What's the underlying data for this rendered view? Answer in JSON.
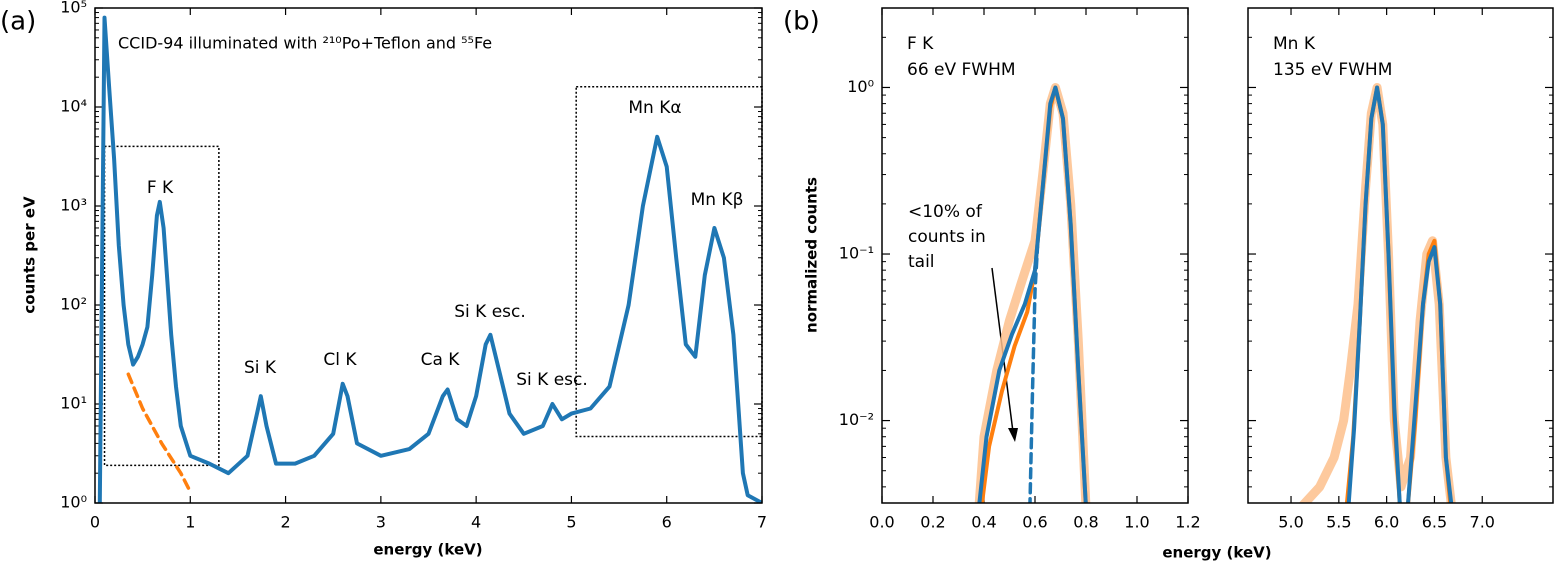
{
  "chart_data": [
    {
      "type": "line",
      "panel": "(a)",
      "ylabel": "counts per eV",
      "xlabel": "energy (keV)",
      "ylog": true,
      "xlim": [
        0,
        7
      ],
      "xticks": [
        0,
        1,
        2,
        3,
        4,
        5,
        6,
        7
      ],
      "ylim": [
        1,
        100000
      ],
      "yticks": [
        {
          "value": 1,
          "label": "10⁰"
        },
        {
          "value": 10,
          "label": "10¹"
        },
        {
          "value": 100,
          "label": "10²"
        },
        {
          "value": 1000,
          "label": "10³"
        },
        {
          "value": 10000,
          "label": "10⁴"
        },
        {
          "value": 100000,
          "label": "10⁵"
        }
      ],
      "annotations": [
        "CCID-94 illuminated with ²¹⁰Po+Teflon and ⁵⁵Fe",
        "F K",
        "Si K",
        "Cl K",
        "Ca K",
        "Si K esc.",
        "Si K esc.",
        "Mn Kα",
        "Mn Kβ"
      ],
      "regions": [
        {
          "x": [
            0.1,
            1.3
          ],
          "y": [
            2.4,
            4000
          ]
        },
        {
          "x": [
            5.05,
            7
          ],
          "y": [
            4.7,
            16000
          ]
        }
      ],
      "series": [
        {
          "color": "#1f77b4",
          "style": "thick",
          "x": [
            0.05,
            0.1,
            0.15,
            0.2,
            0.25,
            0.3,
            0.35,
            0.4,
            0.45,
            0.5,
            0.55,
            0.6,
            0.65,
            0.68,
            0.72,
            0.8,
            0.85,
            0.9,
            1.0,
            1.2,
            1.4,
            1.6,
            1.7,
            1.74,
            1.8,
            1.9,
            2.1,
            2.3,
            2.5,
            2.6,
            2.65,
            2.75,
            3.0,
            3.3,
            3.5,
            3.65,
            3.7,
            3.8,
            3.9,
            4.0,
            4.1,
            4.15,
            4.25,
            4.35,
            4.5,
            4.7,
            4.8,
            4.9,
            5.0,
            5.2,
            5.4,
            5.6,
            5.75,
            5.9,
            6.0,
            6.1,
            6.2,
            6.3,
            6.4,
            6.5,
            6.6,
            6.7,
            6.75,
            6.8,
            6.85,
            7.0
          ],
          "values": [
            1,
            80000,
            15000,
            3000,
            400,
            100,
            40,
            25,
            30,
            40,
            60,
            200,
            800,
            1100,
            600,
            50,
            15,
            6,
            3,
            2.5,
            2,
            3,
            8,
            12,
            6,
            2.5,
            2.5,
            3,
            5,
            16,
            12,
            4,
            3,
            3.5,
            5,
            12,
            14,
            7,
            6,
            12,
            40,
            50,
            20,
            8,
            5,
            6,
            10,
            7,
            8,
            9,
            15,
            100,
            1000,
            5000,
            2500,
            300,
            40,
            30,
            200,
            600,
            300,
            50,
            10,
            2,
            1.2,
            1
          ]
        },
        {
          "color": "#ff7f0e",
          "style": "dashed",
          "x": [
            0.35,
            0.5,
            0.7,
            0.9,
            1.0
          ],
          "values": [
            20,
            9,
            4,
            2,
            1.3
          ]
        }
      ]
    },
    {
      "type": "line",
      "panel": "(b)",
      "ylabel": "normalized counts",
      "xlabel": "energy (keV)",
      "ylog": true,
      "xlim": [
        0,
        1.2
      ],
      "xticks": [
        {
          "value": 0,
          "label": "0.0"
        },
        0.2,
        0.4,
        0.6,
        0.8,
        {
          "value": 1,
          "label": "1.0"
        },
        1.2
      ],
      "ylim": [
        0.0032,
        3
      ],
      "yticks": [
        {
          "value": 0.01,
          "label": "10⁻²"
        },
        {
          "value": 0.1,
          "label": "10⁻¹"
        },
        {
          "value": 1,
          "label": "10⁰"
        }
      ],
      "annotations": [
        "F K",
        "66 eV FWHM",
        "<10% of",
        "counts in",
        "tail"
      ],
      "series": [
        {
          "color": "#fdbf8c",
          "style": "band",
          "x": [
            0.38,
            0.4,
            0.45,
            0.5,
            0.55,
            0.6,
            0.63,
            0.66,
            0.68,
            0.71,
            0.74,
            0.77,
            0.8
          ],
          "values": [
            0.003,
            0.008,
            0.02,
            0.04,
            0.07,
            0.12,
            0.3,
            0.8,
            1.0,
            0.7,
            0.2,
            0.03,
            0.003
          ]
        },
        {
          "color": "#ff7f0e",
          "style": "thick",
          "x": [
            0.39,
            0.42,
            0.47,
            0.52,
            0.57,
            0.6,
            0.63,
            0.66,
            0.68,
            0.71,
            0.74,
            0.77,
            0.8
          ],
          "values": [
            0.003,
            0.007,
            0.015,
            0.028,
            0.045,
            0.08,
            0.25,
            0.75,
            1.0,
            0.65,
            0.15,
            0.02,
            0.003
          ]
        },
        {
          "color": "#1f77b4",
          "style": "thick",
          "x": [
            0.38,
            0.41,
            0.46,
            0.51,
            0.56,
            0.6,
            0.63,
            0.66,
            0.68,
            0.71,
            0.74,
            0.77,
            0.8
          ],
          "values": [
            0.003,
            0.008,
            0.02,
            0.033,
            0.05,
            0.08,
            0.25,
            0.8,
            1.0,
            0.65,
            0.15,
            0.02,
            0.003
          ]
        },
        {
          "color": "#1f77b4",
          "style": "dashed",
          "x": [
            0.58,
            0.59,
            0.6,
            0.61
          ],
          "values": [
            0.003,
            0.015,
            0.06,
            0.11
          ]
        }
      ]
    },
    {
      "type": "line",
      "ylog": true,
      "xlim": [
        4.55,
        7.74
      ],
      "xticks": [
        {
          "value": 5,
          "label": "5.0"
        },
        5.5,
        {
          "value": 6,
          "label": "6.0"
        },
        6.5,
        {
          "value": 7,
          "label": "7.0"
        }
      ],
      "ylim": [
        0.0032,
        3
      ],
      "yticks": [
        0.01,
        0.1,
        1
      ],
      "annotations": [
        "Mn K",
        "135 eV FWHM"
      ],
      "series": [
        {
          "color": "#fdbf8c",
          "style": "band",
          "x": [
            5.1,
            5.3,
            5.45,
            5.55,
            5.62,
            5.7,
            5.78,
            5.84,
            5.9,
            5.96,
            6.02,
            6.08,
            6.15,
            6.25,
            6.35,
            6.42,
            6.48,
            6.55,
            6.62,
            6.68
          ],
          "values": [
            0.003,
            0.004,
            0.006,
            0.01,
            0.02,
            0.05,
            0.25,
            0.7,
            1.0,
            0.6,
            0.1,
            0.01,
            0.004,
            0.006,
            0.04,
            0.1,
            0.12,
            0.05,
            0.006,
            0.003
          ]
        },
        {
          "color": "#ff7f0e",
          "style": "thick",
          "x": [
            5.58,
            5.65,
            5.72,
            5.78,
            5.84,
            5.9,
            5.96,
            6.02,
            6.08,
            6.14,
            6.22,
            6.3,
            6.38,
            6.44,
            6.5,
            6.56,
            6.62,
            6.67
          ],
          "values": [
            0.003,
            0.008,
            0.04,
            0.2,
            0.65,
            1.0,
            0.6,
            0.1,
            0.01,
            0.003,
            0.003,
            0.01,
            0.05,
            0.1,
            0.12,
            0.05,
            0.006,
            0.003
          ]
        },
        {
          "color": "#1f77b4",
          "style": "thick",
          "x": [
            5.6,
            5.66,
            5.72,
            5.78,
            5.84,
            5.9,
            5.96,
            6.02,
            6.08,
            6.14,
            6.22,
            6.3,
            6.38,
            6.44,
            6.5,
            6.56,
            6.62,
            6.68
          ],
          "values": [
            0.003,
            0.009,
            0.04,
            0.2,
            0.65,
            1.0,
            0.6,
            0.1,
            0.012,
            0.003,
            0.003,
            0.012,
            0.05,
            0.09,
            0.11,
            0.05,
            0.006,
            0.003
          ]
        }
      ]
    }
  ]
}
